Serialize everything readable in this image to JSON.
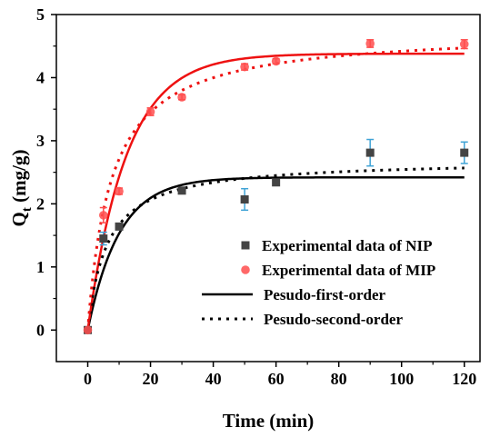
{
  "chart_data": {
    "type": "scatter",
    "xlabel": "Time (min)",
    "ylabel_main": "Q",
    "ylabel_sub": "t",
    "ylabel_unit": " (mg/g)",
    "xlim": [
      -10,
      125
    ],
    "ylim": [
      -0.5,
      5
    ],
    "xticks": [
      "0",
      "20",
      "40",
      "60",
      "80",
      "100",
      "120"
    ],
    "yticks": [
      "0",
      "1",
      "2",
      "3",
      "4",
      "5"
    ],
    "legend_position": "lower-right",
    "series": [
      {
        "name": "Experimental data of NIP",
        "kind": "points",
        "marker": "square",
        "color": "#444444",
        "error_color": "#3fa3d6",
        "points": [
          {
            "x": 0,
            "y": 0,
            "err": 0
          },
          {
            "x": 5,
            "y": 1.45,
            "err": 0.1
          },
          {
            "x": 10,
            "y": 1.64,
            "err": 0.05
          },
          {
            "x": 30,
            "y": 2.21,
            "err": 0.04
          },
          {
            "x": 50,
            "y": 2.07,
            "err": 0.17
          },
          {
            "x": 60,
            "y": 2.34,
            "err": 0.05
          },
          {
            "x": 90,
            "y": 2.81,
            "err": 0.21
          },
          {
            "x": 120,
            "y": 2.81,
            "err": 0.17
          }
        ]
      },
      {
        "name": "Experimental data of MIP",
        "kind": "points",
        "marker": "circle",
        "color": "#ff4d4d",
        "error_color": "#ff4d4d",
        "points": [
          {
            "x": 0,
            "y": 0,
            "err": 0
          },
          {
            "x": 5,
            "y": 1.82,
            "err": 0.12
          },
          {
            "x": 10,
            "y": 2.2,
            "err": 0.05
          },
          {
            "x": 20,
            "y": 3.46,
            "err": 0.06
          },
          {
            "x": 30,
            "y": 3.69,
            "err": 0.04
          },
          {
            "x": 50,
            "y": 4.17,
            "err": 0.05
          },
          {
            "x": 60,
            "y": 4.26,
            "err": 0.04
          },
          {
            "x": 90,
            "y": 4.54,
            "err": 0.06
          },
          {
            "x": 120,
            "y": 4.53,
            "err": 0.07
          }
        ]
      },
      {
        "name": "Pesudo-first-order",
        "kind": "fit",
        "dash": "solid",
        "fits": [
          {
            "color": "#000000",
            "qe": 2.42,
            "k": 0.1
          },
          {
            "color": "#ee1111",
            "qe": 4.38,
            "k": 0.081
          }
        ]
      },
      {
        "name": "Pesudo-second-order",
        "kind": "fit",
        "dash": "dotted",
        "fits": [
          {
            "color": "#000000",
            "qe": 2.7,
            "k": 0.06
          },
          {
            "color": "#ee1111",
            "qe": 4.75,
            "k": 0.028
          }
        ]
      }
    ]
  }
}
